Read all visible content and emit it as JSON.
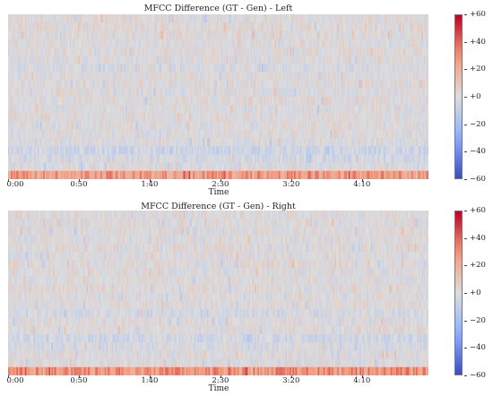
{
  "chart_data": [
    {
      "type": "heatmap",
      "title": "MFCC Difference (GT - Gen) - Left",
      "xlabel": "Time",
      "ylabel": "",
      "x_tick_labels": [
        "0:00",
        "0:50",
        "1:40",
        "2:30",
        "3:20",
        "4:10"
      ],
      "x_tick_seconds": [
        0,
        50,
        100,
        150,
        200,
        250
      ],
      "x_range_seconds": [
        0,
        297
      ],
      "colorbar": {
        "range": [
          -60,
          60
        ],
        "tick_values": [
          60,
          40,
          20,
          0,
          -20,
          -40,
          -60
        ],
        "tick_labels": [
          "+60",
          "+40",
          "+20",
          "+0",
          "−20",
          "−40",
          "−60"
        ],
        "colormap": "coolwarm"
      },
      "row_profile_note_free_rows": 20,
      "row_means": [
        1,
        2,
        1,
        0,
        1,
        0,
        -2,
        0,
        1,
        0,
        1,
        0,
        1,
        0,
        0,
        -1,
        -6,
        -4,
        0,
        28
      ],
      "grid": false
    },
    {
      "type": "heatmap",
      "title": "MFCC Difference (GT - Gen) - Right",
      "xlabel": "Time",
      "ylabel": "",
      "x_tick_labels": [
        "0:00",
        "0:50",
        "1:40",
        "2:30",
        "3:20",
        "4:10"
      ],
      "x_tick_seconds": [
        0,
        50,
        100,
        150,
        200,
        250
      ],
      "x_range_seconds": [
        0,
        297
      ],
      "colorbar": {
        "range": [
          -60,
          60
        ],
        "tick_values": [
          60,
          40,
          20,
          0,
          -20,
          -40,
          -60
        ],
        "tick_labels": [
          "+60",
          "+40",
          "+20",
          "+0",
          "−20",
          "−40",
          "−60"
        ],
        "colormap": "coolwarm"
      },
      "row_means": [
        1,
        0,
        1,
        0,
        1,
        0,
        1,
        0,
        0,
        1,
        0,
        1,
        -3,
        0,
        1,
        -5,
        -2,
        0,
        0,
        30
      ],
      "grid": false
    }
  ]
}
